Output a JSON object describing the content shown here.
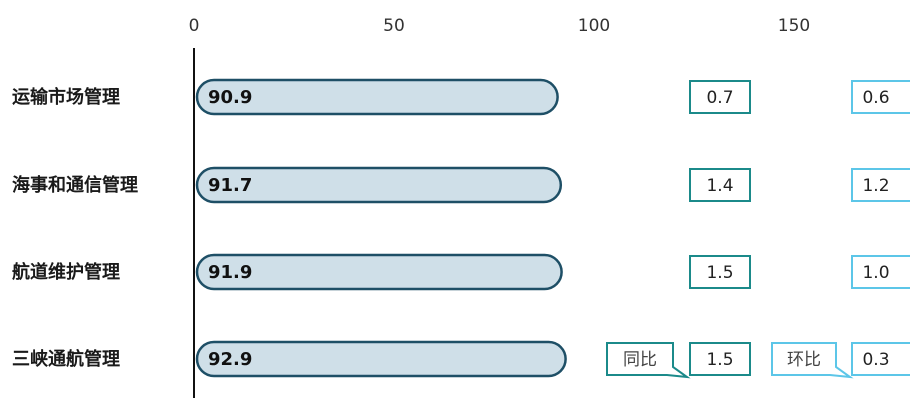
{
  "chart_data": {
    "type": "bar",
    "orientation": "horizontal",
    "title": "",
    "xlabel": "",
    "ylabel": "",
    "xlim": [
      0,
      160
    ],
    "xticks": [
      0,
      50,
      100,
      150
    ],
    "categories": [
      "运输市场管理",
      "海事和通信管理",
      "航道维护管理",
      "三峡通航管理"
    ],
    "values": [
      90.9,
      91.7,
      91.9,
      92.9
    ],
    "value_labels": [
      "90.9",
      "91.7",
      "91.9",
      "92.9"
    ],
    "yoy": {
      "name": "同比",
      "values": [
        "0.7",
        "1.4",
        "1.5",
        "1.5"
      ],
      "color": "#1b8a8a"
    },
    "mom": {
      "name": "环比",
      "values": [
        "0.6",
        "1.2",
        "1.0",
        "0.3"
      ],
      "color": "#5cc6e8"
    },
    "bar_fill": "#cfdfe8",
    "bar_stroke": "#1e4f66",
    "grid": false,
    "legend": "none"
  }
}
